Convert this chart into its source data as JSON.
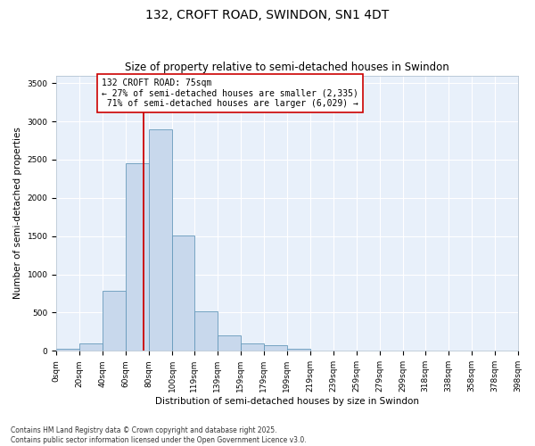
{
  "title": "132, CROFT ROAD, SWINDON, SN1 4DT",
  "subtitle": "Size of property relative to semi-detached houses in Swindon",
  "xlabel": "Distribution of semi-detached houses by size in Swindon",
  "ylabel": "Number of semi-detached properties",
  "property_size": 75,
  "property_label": "132 CROFT ROAD: 75sqm",
  "pct_smaller": 27,
  "pct_larger": 71,
  "n_smaller": 2335,
  "n_larger": 6029,
  "bar_color": "#c8d8ec",
  "bar_edge_color": "#6699bb",
  "vline_color": "#cc0000",
  "annotation_box_color": "#cc0000",
  "grid_color": "#c8d8ec",
  "bg_color": "#e8f0fa",
  "bin_edges": [
    0,
    20,
    40,
    60,
    80,
    100,
    119,
    139,
    159,
    179,
    199,
    219,
    239,
    259,
    279,
    299,
    318,
    338,
    358,
    378,
    398
  ],
  "bin_labels": [
    "0sqm",
    "20sqm",
    "40sqm",
    "60sqm",
    "80sqm",
    "100sqm",
    "119sqm",
    "139sqm",
    "159sqm",
    "179sqm",
    "199sqm",
    "219sqm",
    "239sqm",
    "259sqm",
    "279sqm",
    "299sqm",
    "318sqm",
    "338sqm",
    "358sqm",
    "378sqm",
    "398sqm"
  ],
  "bar_heights": [
    30,
    100,
    780,
    2450,
    2900,
    1510,
    520,
    200,
    95,
    70,
    30,
    5,
    5,
    0,
    0,
    0,
    0,
    0,
    0,
    0
  ],
  "ylim": [
    0,
    3600
  ],
  "yticks": [
    0,
    500,
    1000,
    1500,
    2000,
    2500,
    3000,
    3500
  ],
  "footer": "Contains HM Land Registry data © Crown copyright and database right 2025.\nContains public sector information licensed under the Open Government Licence v3.0.",
  "title_fontsize": 10,
  "subtitle_fontsize": 8.5,
  "axis_label_fontsize": 7.5,
  "tick_fontsize": 6.5,
  "annotation_fontsize": 7,
  "footer_fontsize": 5.5
}
